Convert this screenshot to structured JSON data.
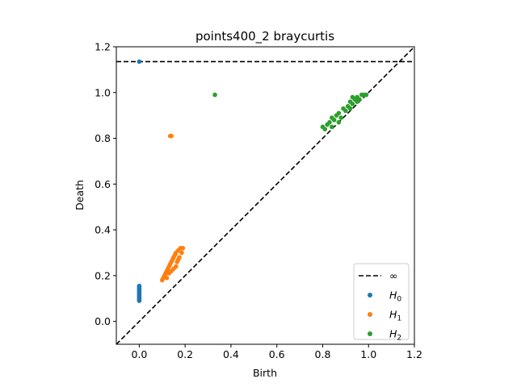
{
  "chart_data": {
    "type": "scatter",
    "title": "points400_2 braycurtis",
    "xlabel": "Birth",
    "ylabel": "Death",
    "xlim": [
      -0.1,
      1.2
    ],
    "ylim": [
      -0.1,
      1.2
    ],
    "xticks": [
      "0.0",
      "0.2",
      "0.4",
      "0.6",
      "0.8",
      "1.0",
      "1.2"
    ],
    "yticks": [
      "0.0",
      "0.2",
      "0.4",
      "0.6",
      "0.8",
      "1.0",
      "1.2"
    ],
    "grid": false,
    "legend_position": "lower-right",
    "infinity_line": {
      "label": "∞",
      "y": 1.135,
      "color": "#000000",
      "style": "dashed"
    },
    "diagonal": {
      "from": [
        -0.1,
        -0.1
      ],
      "to": [
        1.2,
        1.2
      ],
      "color": "#000000",
      "style": "dashed"
    },
    "series": [
      {
        "name": "H0",
        "label_base": "H",
        "label_sub": "0",
        "color": "#1f77b4",
        "points": [
          [
            0.0,
            0.09
          ],
          [
            0.0,
            0.095
          ],
          [
            0.0,
            0.1
          ],
          [
            0.0,
            0.105
          ],
          [
            0.0,
            0.11
          ],
          [
            0.0,
            0.115
          ],
          [
            0.0,
            0.12
          ],
          [
            0.0,
            0.125
          ],
          [
            0.0,
            0.13
          ],
          [
            0.0,
            0.135
          ],
          [
            0.0,
            0.14
          ],
          [
            0.0,
            0.145
          ],
          [
            0.0,
            0.15
          ],
          [
            0.0,
            0.155
          ],
          [
            0.0,
            1.135
          ]
        ]
      },
      {
        "name": "H1",
        "label_base": "H",
        "label_sub": "1",
        "color": "#ff7f0e",
        "points": [
          [
            0.1,
            0.18
          ],
          [
            0.105,
            0.19
          ],
          [
            0.11,
            0.2
          ],
          [
            0.115,
            0.21
          ],
          [
            0.12,
            0.19
          ],
          [
            0.12,
            0.22
          ],
          [
            0.125,
            0.23
          ],
          [
            0.13,
            0.21
          ],
          [
            0.13,
            0.24
          ],
          [
            0.135,
            0.25
          ],
          [
            0.14,
            0.22
          ],
          [
            0.14,
            0.26
          ],
          [
            0.145,
            0.27
          ],
          [
            0.15,
            0.23
          ],
          [
            0.15,
            0.28
          ],
          [
            0.155,
            0.29
          ],
          [
            0.16,
            0.24
          ],
          [
            0.16,
            0.3
          ],
          [
            0.165,
            0.26
          ],
          [
            0.17,
            0.31
          ],
          [
            0.17,
            0.27
          ],
          [
            0.175,
            0.28
          ],
          [
            0.18,
            0.32
          ],
          [
            0.185,
            0.3
          ],
          [
            0.19,
            0.32
          ],
          [
            0.135,
            0.81
          ],
          [
            0.14,
            0.81
          ]
        ]
      },
      {
        "name": "H2",
        "label_base": "H",
        "label_sub": "2",
        "color": "#2ca02c",
        "points": [
          [
            0.8,
            0.85
          ],
          [
            0.81,
            0.84
          ],
          [
            0.82,
            0.86
          ],
          [
            0.83,
            0.87
          ],
          [
            0.84,
            0.85
          ],
          [
            0.84,
            0.89
          ],
          [
            0.85,
            0.88
          ],
          [
            0.86,
            0.9
          ],
          [
            0.87,
            0.87
          ],
          [
            0.87,
            0.91
          ],
          [
            0.88,
            0.89
          ],
          [
            0.89,
            0.93
          ],
          [
            0.9,
            0.92
          ],
          [
            0.91,
            0.94
          ],
          [
            0.92,
            0.93
          ],
          [
            0.92,
            0.96
          ],
          [
            0.93,
            0.95
          ],
          [
            0.94,
            0.97
          ],
          [
            0.95,
            0.96
          ],
          [
            0.95,
            0.98
          ],
          [
            0.96,
            0.97
          ],
          [
            0.97,
            0.99
          ],
          [
            0.98,
            0.99
          ],
          [
            0.99,
            0.99
          ],
          [
            0.93,
            0.98
          ],
          [
            0.33,
            0.99
          ]
        ]
      }
    ]
  }
}
